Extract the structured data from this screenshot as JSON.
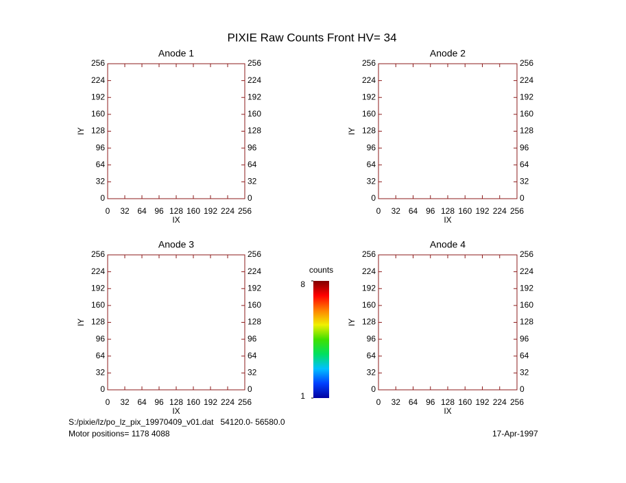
{
  "title": "PIXIE Raw Counts Front HV= 34",
  "footer": {
    "file": "S:/pixie/lz/po_lz_pix_19970409_v01.dat   54120.0- 56580.0",
    "motor": "Motor positions= 1178 4088",
    "date": "17-Apr-1997"
  },
  "chart_data": [
    {
      "type": "image",
      "title": "Anode 1",
      "xlabel": "IX",
      "ylabel": "IY",
      "xlim": [
        0,
        256
      ],
      "ylim": [
        0,
        256
      ],
      "xticks": [
        0,
        32,
        64,
        96,
        128,
        160,
        192,
        224,
        256
      ],
      "yticks": [
        0,
        32,
        64,
        96,
        128,
        160,
        192,
        224,
        256
      ],
      "axis_color": "#8b1a1a"
    },
    {
      "type": "image",
      "title": "Anode 2",
      "xlabel": "IX",
      "ylabel": "IY",
      "xlim": [
        0,
        256
      ],
      "ylim": [
        0,
        256
      ],
      "xticks": [
        0,
        32,
        64,
        96,
        128,
        160,
        192,
        224,
        256
      ],
      "yticks": [
        0,
        32,
        64,
        96,
        128,
        160,
        192,
        224,
        256
      ],
      "axis_color": "#8b1a1a"
    },
    {
      "type": "image",
      "title": "Anode 3",
      "xlabel": "IX",
      "ylabel": "IY",
      "xlim": [
        0,
        256
      ],
      "ylim": [
        0,
        256
      ],
      "xticks": [
        0,
        32,
        64,
        96,
        128,
        160,
        192,
        224,
        256
      ],
      "yticks": [
        0,
        32,
        64,
        96,
        128,
        160,
        192,
        224,
        256
      ],
      "axis_color": "#8b1a1a"
    },
    {
      "type": "image",
      "title": "Anode 4",
      "xlabel": "IX",
      "ylabel": "IY",
      "xlim": [
        0,
        256
      ],
      "ylim": [
        0,
        256
      ],
      "xticks": [
        0,
        32,
        64,
        96,
        128,
        160,
        192,
        224,
        256
      ],
      "yticks": [
        0,
        32,
        64,
        96,
        128,
        160,
        192,
        224,
        256
      ],
      "axis_color": "#8b1a1a"
    },
    {
      "type": "colorbar",
      "label": "counts",
      "lim": [
        1,
        8
      ],
      "ticks": [
        1,
        8
      ],
      "colors": [
        "#0000a0",
        "#0040ff",
        "#00c0ff",
        "#00e060",
        "#40e000",
        "#f0f000",
        "#ff8000",
        "#ff0000",
        "#800000"
      ]
    }
  ]
}
